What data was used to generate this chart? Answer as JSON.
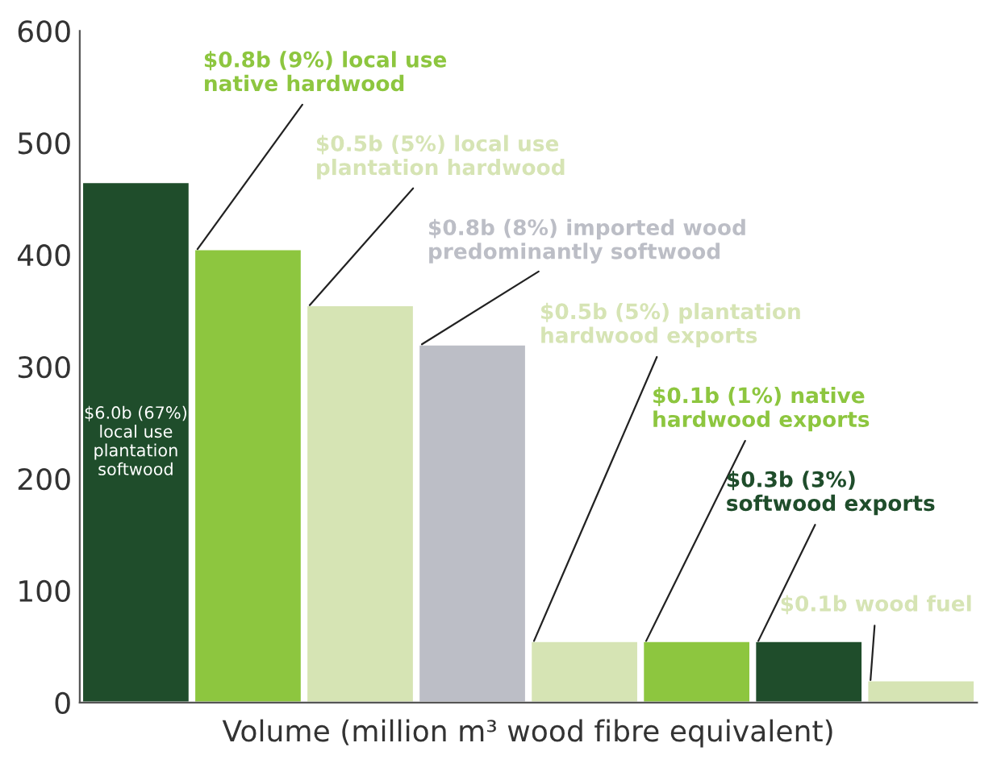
{
  "chart_data": {
    "type": "bar",
    "xlabel": "Volume (million m³ wood fibre equivalent)",
    "categories": [
      null,
      null,
      null,
      null,
      null,
      null,
      null,
      null
    ],
    "values": [
      465,
      405,
      355,
      320,
      55,
      55,
      55,
      20
    ],
    "colors": [
      "#1f4d2b",
      "#8dc63f",
      "#d6e4b4",
      "#bcbec6",
      "#d6e4b4",
      "#8dc63f",
      "#1f4d2b",
      "#d6e4b4"
    ],
    "ylim": [
      0,
      600
    ],
    "yticks": [
      0,
      100,
      200,
      300,
      400,
      500,
      600
    ],
    "grid": false,
    "annotations": [
      "$6.0b (67%)\nlocal use\nplantation\nsoftwood",
      "$0.8b (9%) local use\nnative hardwood",
      "$0.5b (5%) local use\nplantation hardwood",
      "$0.8b (8%) imported wood\npredominantly softwood",
      "$0.5b (5%) plantation\nhardwood exports",
      "$0.1b (1%) native\nhardwood exports",
      "$0.3b (3%)\nsoftwood exports",
      "$0.1b wood fuel"
    ]
  }
}
